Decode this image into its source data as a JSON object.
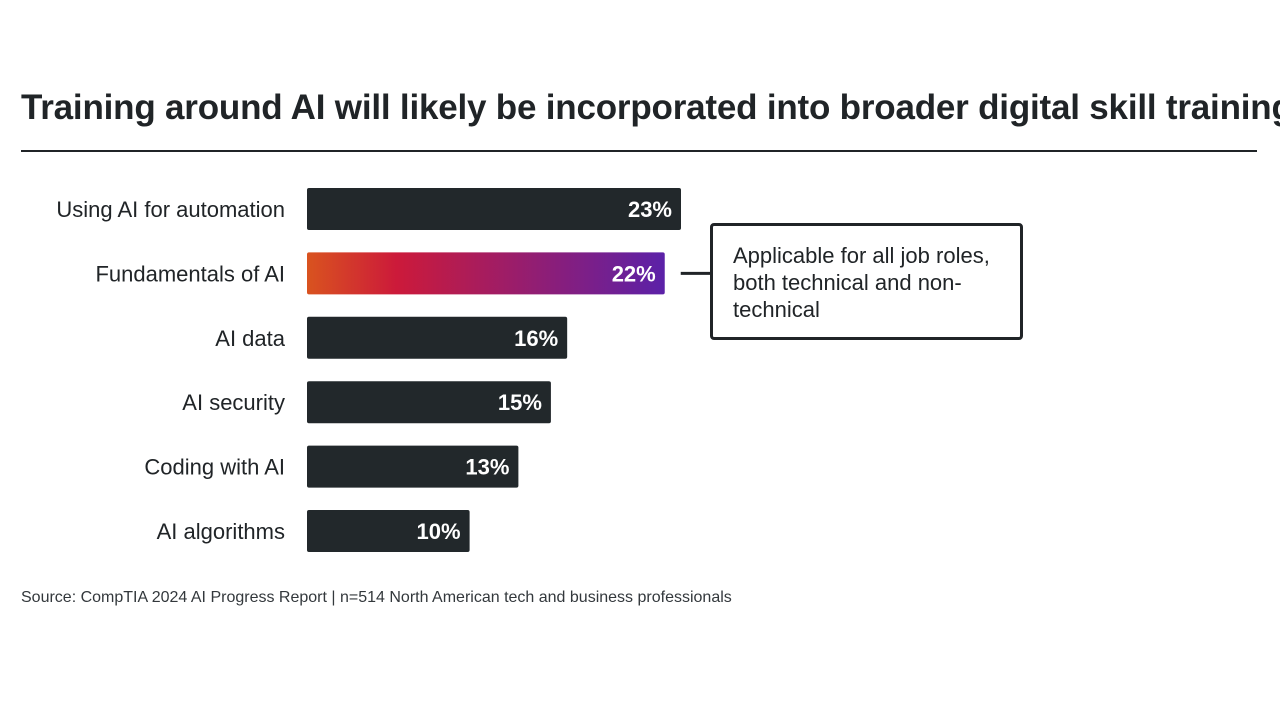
{
  "title": "Training around AI will likely be incorporated into broader digital skill training",
  "callout": "Applicable for all job roles, both technical and non-technical",
  "source": "Source: CompTIA 2024 AI Progress Report | n=514 North American tech and business professionals",
  "colors": {
    "bar": "#22282b",
    "highlight_start": "#d9531f",
    "highlight_mid": "#cc1a3a",
    "highlight_end": "#5b21a8",
    "text": "#202427"
  },
  "chart_data": {
    "type": "bar",
    "orientation": "horizontal",
    "title": "Training around AI will likely be incorporated into broader digital skill training",
    "categories": [
      "Using AI for automation",
      "Fundamentals of AI",
      "AI data",
      "AI security",
      "Coding with AI",
      "AI algorithms"
    ],
    "values": [
      23,
      22,
      16,
      15,
      13,
      10
    ],
    "value_labels": [
      "23%",
      "22%",
      "16%",
      "15%",
      "13%",
      "10%"
    ],
    "highlight_index": 1,
    "xlabel": "",
    "ylabel": "",
    "xlim": [
      0,
      23
    ],
    "grid": false,
    "annotation": "Applicable for all job roles, both technical and non-technical"
  }
}
